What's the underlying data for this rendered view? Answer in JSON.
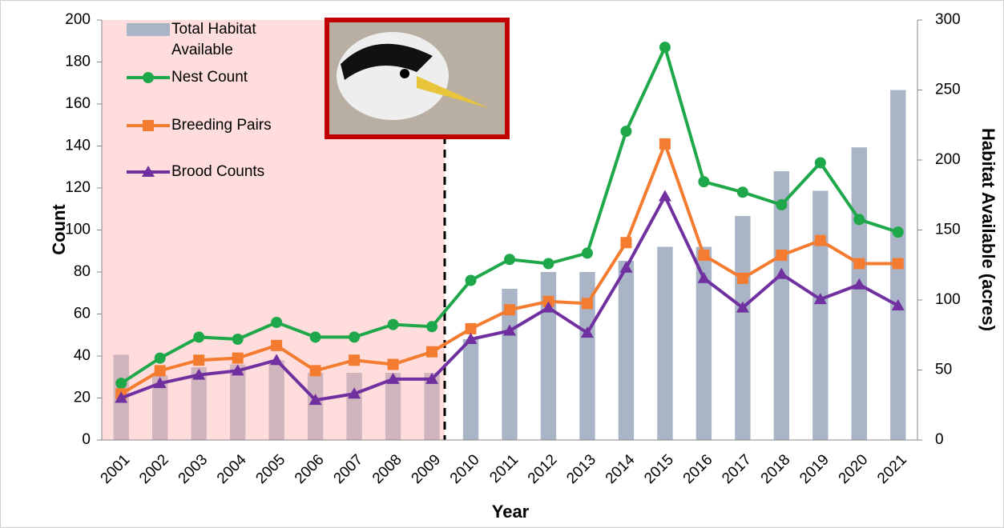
{
  "chart_data": {
    "type": "combo",
    "x_label": "Year",
    "y_label": "Count",
    "y2_label": "Habitat Available (acres)",
    "categories": [
      "2001",
      "2002",
      "2003",
      "2004",
      "2005",
      "2006",
      "2007",
      "2008",
      "2009",
      "2010",
      "2011",
      "2012",
      "2013",
      "2014",
      "2015",
      "2016",
      "2017",
      "2018",
      "2019",
      "2020",
      "2021"
    ],
    "series": [
      {
        "name": "Total Habitat Available",
        "type": "bar",
        "axis": "y2",
        "color": "#a9b4c7",
        "values": [
          61,
          46,
          52,
          54,
          57,
          48,
          48,
          48,
          48,
          72,
          108,
          120,
          120,
          128,
          138,
          138,
          160,
          192,
          178,
          209,
          250
        ]
      },
      {
        "name": "Nest Count",
        "type": "line",
        "marker": "circle",
        "color": "#1fa84a",
        "values": [
          27,
          39,
          49,
          48,
          56,
          49,
          49,
          55,
          54,
          76,
          86,
          84,
          89,
          147,
          187,
          123,
          118,
          112,
          132,
          105,
          99
        ]
      },
      {
        "name": "Breeding Pairs",
        "type": "line",
        "marker": "square",
        "color": "#f47c30",
        "values": [
          22,
          33,
          38,
          39,
          45,
          33,
          38,
          36,
          42,
          53,
          62,
          66,
          65,
          94,
          141,
          88,
          77,
          88,
          95,
          84,
          84
        ]
      },
      {
        "name": "Brood Counts",
        "type": "line",
        "marker": "triangle",
        "color": "#7030a0",
        "values": [
          20,
          27,
          31,
          33,
          38,
          19,
          22,
          29,
          29,
          48,
          52,
          63,
          51,
          82,
          116,
          77,
          63,
          79,
          67,
          74,
          64
        ]
      }
    ],
    "ylim": [
      0,
      200
    ],
    "yticks": [
      0,
      20,
      40,
      60,
      80,
      100,
      120,
      140,
      160,
      180,
      200
    ],
    "y2lim": [
      0,
      300
    ],
    "y2ticks": [
      0,
      50,
      100,
      150,
      200,
      250,
      300
    ],
    "legend": "top-left"
  }
}
